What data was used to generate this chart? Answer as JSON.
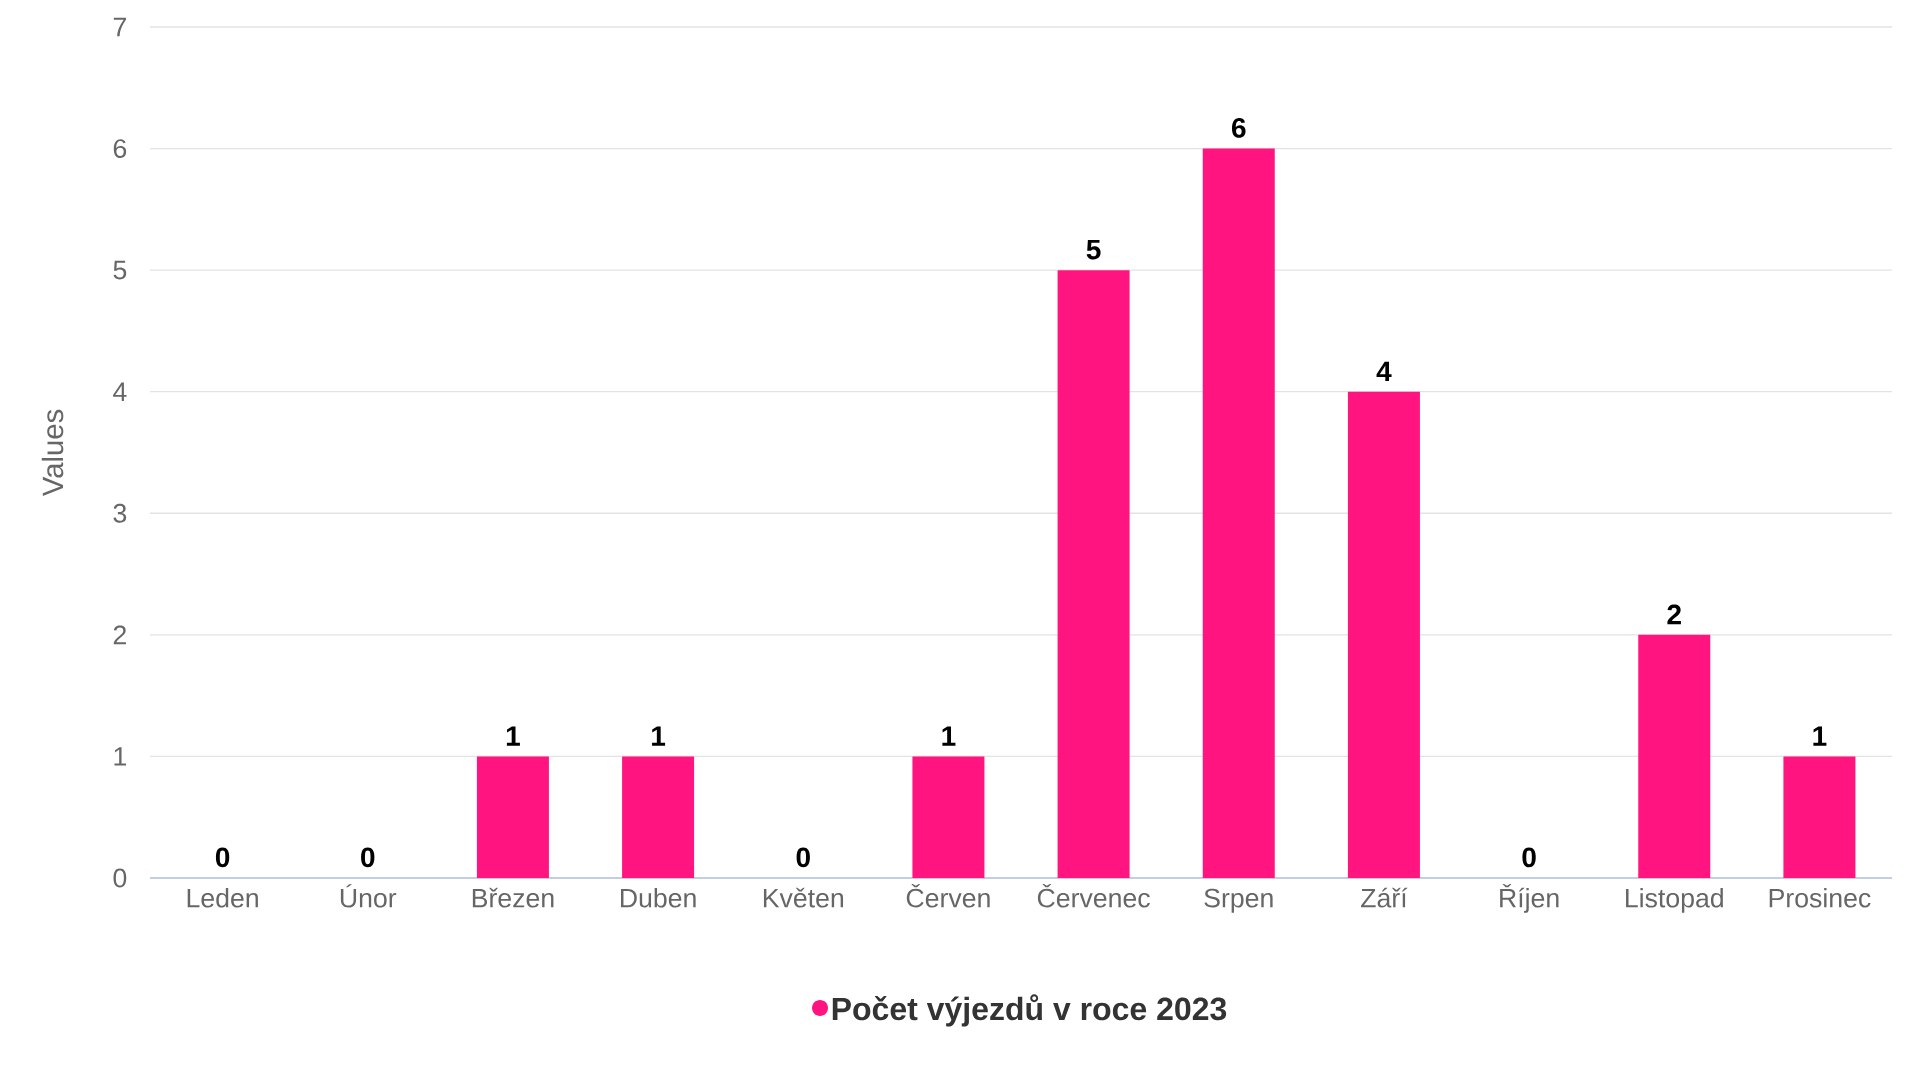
{
  "chart_data": {
    "type": "bar",
    "ylabel": "Values",
    "categories": [
      "Leden",
      "Únor",
      "Březen",
      "Duben",
      "Květen",
      "Červen",
      "Červenec",
      "Srpen",
      "Září",
      "Říjen",
      "Listopad",
      "Prosinec"
    ],
    "series": [
      {
        "name": "Počet výjezdů v roce 2023",
        "color": "#ff1480",
        "values": [
          0,
          0,
          1,
          1,
          0,
          1,
          5,
          6,
          4,
          0,
          2,
          1
        ]
      }
    ],
    "ylim": [
      0,
      7
    ],
    "yticks": [
      0,
      1,
      2,
      3,
      4,
      5,
      6,
      7
    ],
    "grid": "y",
    "legend": "bottom",
    "marker": "circle",
    "data_labels": true
  }
}
